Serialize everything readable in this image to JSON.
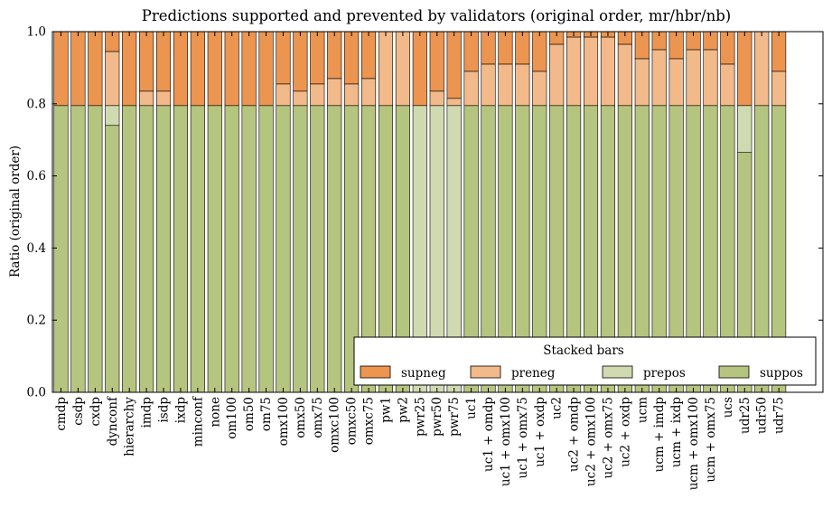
{
  "chart_data": {
    "type": "bar",
    "stacked": true,
    "title": "Predictions supported and prevented by validators (original order, mr/hbr/nb)",
    "xlabel": "",
    "ylabel": "Ratio (original order)",
    "ylim": [
      0,
      1
    ],
    "yticks": [
      "0.0",
      "0.2",
      "0.4",
      "0.6",
      "0.8",
      "1.0"
    ],
    "grid": false,
    "legend": {
      "title": "Stacked bars",
      "placement": "lower-right"
    },
    "categories": [
      "cmdp",
      "csdp",
      "cxdp",
      "dynconf",
      "hierarchy",
      "imdp",
      "isdp",
      "ixdp",
      "minconf",
      "none",
      "om100",
      "om50",
      "om75",
      "omx100",
      "omx50",
      "omx75",
      "omxc100",
      "omxc50",
      "omxc75",
      "pw1",
      "pw2",
      "pwr25",
      "pwr50",
      "pwr75",
      "uc1",
      "uc1 + omdp",
      "uc1 + omx100",
      "uc1 + omx75",
      "uc1 + oxdp",
      "uc2",
      "uc2 + omdp",
      "uc2 + omx100",
      "uc2 + omx75",
      "uc2 + oxdp",
      "ucm",
      "ucm + imdp",
      "ucm + ixdp",
      "ucm + omx100",
      "ucm + omx75",
      "ucs",
      "udr25",
      "udr50",
      "udr75"
    ],
    "series": [
      {
        "name": "suppos",
        "color": "#b5c47f",
        "values": [
          0.795,
          0.795,
          0.795,
          0.74,
          0.795,
          0.795,
          0.795,
          0.795,
          0.795,
          0.795,
          0.795,
          0.795,
          0.795,
          0.795,
          0.795,
          0.795,
          0.795,
          0.795,
          0.795,
          0.795,
          0.795,
          0,
          0,
          0,
          0.795,
          0.795,
          0.795,
          0.795,
          0.795,
          0.795,
          0.795,
          0.795,
          0.795,
          0.795,
          0.795,
          0.795,
          0.795,
          0.795,
          0.795,
          0.795,
          0.665,
          0.795,
          0.795
        ]
      },
      {
        "name": "prepos",
        "color": "#d0dab0",
        "values": [
          0,
          0,
          0,
          0.055,
          0,
          0,
          0,
          0,
          0,
          0,
          0,
          0,
          0,
          0,
          0,
          0,
          0,
          0,
          0,
          0,
          0,
          0.795,
          0.795,
          0.795,
          0,
          0,
          0,
          0,
          0,
          0,
          0,
          0,
          0,
          0,
          0,
          0,
          0,
          0,
          0,
          0,
          0.13,
          0,
          0
        ]
      },
      {
        "name": "preneg",
        "color": "#f2b98a",
        "values": [
          0,
          0,
          0,
          0.15,
          0,
          0.04,
          0.04,
          0,
          0,
          0,
          0,
          0,
          0,
          0.06,
          0.04,
          0.06,
          0.075,
          0.06,
          0.075,
          0.205,
          0.205,
          0,
          0.04,
          0.02,
          0.095,
          0.115,
          0.115,
          0.115,
          0.095,
          0.17,
          0.19,
          0.19,
          0.19,
          0.17,
          0.13,
          0.155,
          0.13,
          0.155,
          0.155,
          0.115,
          0,
          0.205,
          0.095
        ]
      },
      {
        "name": "supneg",
        "color": "#eb9550",
        "values": [
          0.205,
          0.205,
          0.205,
          0.055,
          0.205,
          0.165,
          0.165,
          0.205,
          0.205,
          0.205,
          0.205,
          0.205,
          0.205,
          0.145,
          0.165,
          0.145,
          0.13,
          0.145,
          0.13,
          0,
          0,
          0.205,
          0.165,
          0.185,
          0.11,
          0.09,
          0.09,
          0.09,
          0.11,
          0.035,
          0.015,
          0.015,
          0.015,
          0.035,
          0.075,
          0.05,
          0.075,
          0.05,
          0.05,
          0.09,
          0.205,
          0,
          0.11
        ]
      }
    ],
    "legend_order": [
      "supneg",
      "preneg",
      "prepos",
      "suppos"
    ]
  }
}
